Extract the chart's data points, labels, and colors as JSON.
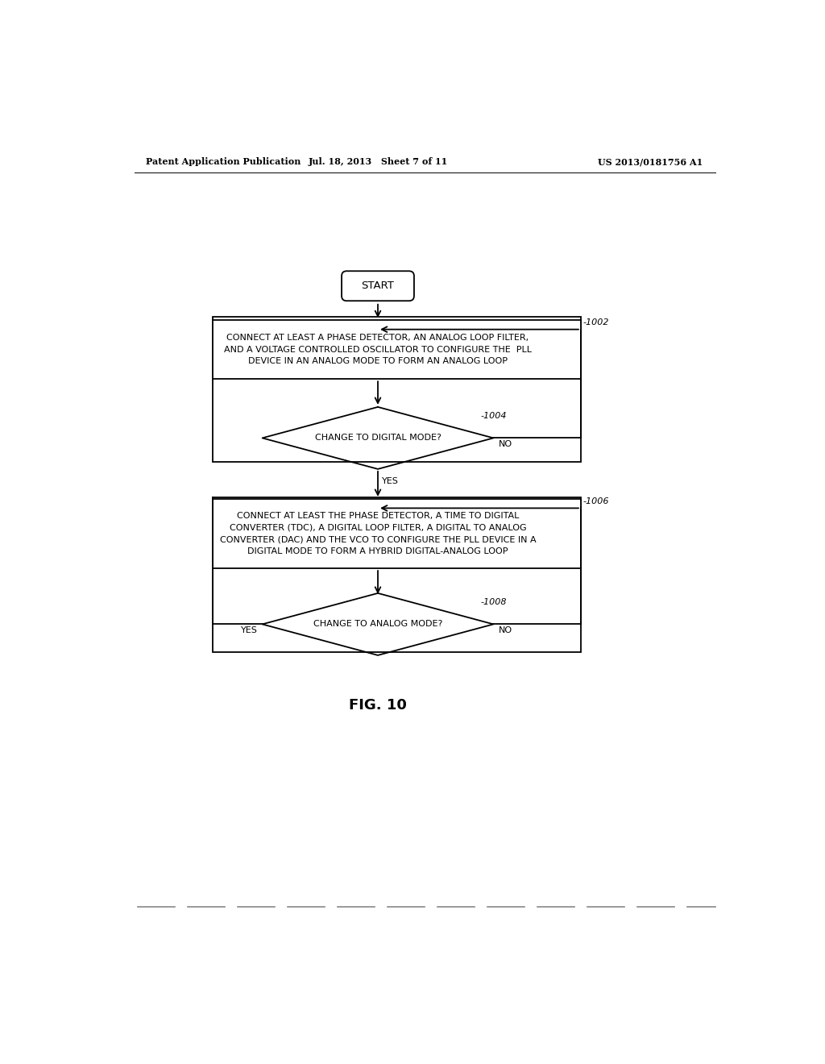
{
  "bg_color": "#ffffff",
  "line_color": "#000000",
  "text_color": "#000000",
  "header_left": "Patent Application Publication",
  "header_center": "Jul. 18, 2013   Sheet 7 of 11",
  "header_right": "US 2013/0181756 A1",
  "fig_label": "FIG. 10",
  "start_label": "START",
  "box1_text": "CONNECT AT LEAST A PHASE DETECTOR, AN ANALOG LOOP FILTER,\nAND A VOLTAGE CONTROLLED OSCILLATOR TO CONFIGURE THE  PLL\nDEVICE IN AN ANALOG MODE TO FORM AN ANALOG LOOP",
  "box1_ref": "-1002",
  "diamond1_text": "CHANGE TO DIGITAL MODE?",
  "diamond1_ref": "-1004",
  "diamond1_yes": "YES",
  "diamond1_no": "NO",
  "box2_text": "CONNECT AT LEAST THE PHASE DETECTOR, A TIME TO DIGITAL\nCONVERTER (TDC), A DIGITAL LOOP FILTER, A DIGITAL TO ANALOG\nCONVERTER (DAC) AND THE VCO TO CONFIGURE THE PLL DEVICE IN A\nDIGITAL MODE TO FORM A HYBRID DIGITAL-ANALOG LOOP",
  "box2_ref": "-1006",
  "diamond2_text": "CHANGE TO ANALOG MODE?",
  "diamond2_ref": "-1008",
  "diamond2_yes": "YES",
  "diamond2_no": "NO"
}
